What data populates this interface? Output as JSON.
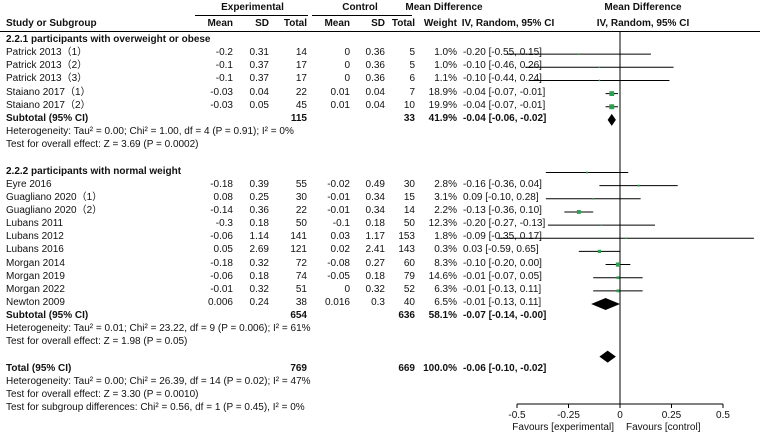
{
  "header": {
    "group_experimental": "Experimental",
    "group_control": "Control",
    "group_md": "Mean Difference",
    "group_md_plot": "Mean Difference",
    "study": "Study or Subgroup",
    "mean_e": "Mean",
    "sd_e": "SD",
    "total_e": "Total",
    "mean_c": "Mean",
    "sd_c": "SD",
    "total_c": "Total",
    "weight": "Weight",
    "md_col": "IV, Random, 95% CI",
    "md_plot_col": "IV, Random, 95% CI"
  },
  "rows": [
    {
      "kind": "subgroup",
      "label": "2.2.1 participants with overweight or obese"
    },
    {
      "kind": "study",
      "label": "Patrick 2013（1）",
      "mean_e": "-0.2",
      "sd_e": "0.31",
      "total_e": "14",
      "mean_c": "0",
      "sd_c": "0.36",
      "total_c": "5",
      "weight": "1.0%",
      "ci_text": "-0.20 [-0.55, 0.15]"
    },
    {
      "kind": "study",
      "label": "Patrick 2013（2）",
      "mean_e": "-0.1",
      "sd_e": "0.37",
      "total_e": "17",
      "mean_c": "0",
      "sd_c": "0.36",
      "total_c": "5",
      "weight": "1.0%",
      "ci_text": "-0.10 [-0.46, 0.26]"
    },
    {
      "kind": "study",
      "label": "Patrick 2013（3）",
      "mean_e": "-0.1",
      "sd_e": "0.37",
      "total_e": "17",
      "mean_c": "0",
      "sd_c": "0.36",
      "total_c": "6",
      "weight": "1.1%",
      "ci_text": "-0.10 [-0.44, 0.24]"
    },
    {
      "kind": "study",
      "label": "Staiano 2017（1）",
      "mean_e": "-0.03",
      "sd_e": "0.04",
      "total_e": "22",
      "mean_c": "0.01",
      "sd_c": "0.04",
      "total_c": "7",
      "weight": "18.9%",
      "ci_text": "-0.04 [-0.07, -0.01]"
    },
    {
      "kind": "study",
      "label": "Staiano 2017（2）",
      "mean_e": "-0.03",
      "sd_e": "0.05",
      "total_e": "45",
      "mean_c": "0.01",
      "sd_c": "0.04",
      "total_c": "10",
      "weight": "19.9%",
      "ci_text": "-0.04 [-0.07, -0.01]"
    },
    {
      "kind": "subtotal",
      "label": "Subtotal (95% CI)",
      "total_e": "115",
      "total_c": "33",
      "weight": "41.9%",
      "ci_text": "-0.04 [-0.06, -0.02]"
    },
    {
      "kind": "note",
      "label": "Heterogeneity: Tau² = 0.00; Chi² = 1.00, df = 4 (P = 0.91); I² = 0%"
    },
    {
      "kind": "note",
      "label": "Test for overall effect: Z = 3.69 (P = 0.0002)"
    },
    {
      "kind": "blank",
      "label": ""
    },
    {
      "kind": "subgroup",
      "label": "2.2.2 participants with normal weight"
    },
    {
      "kind": "study",
      "label": "Eyre 2016",
      "mean_e": "-0.18",
      "sd_e": "0.39",
      "total_e": "55",
      "mean_c": "-0.02",
      "sd_c": "0.49",
      "total_c": "30",
      "weight": "2.8%",
      "ci_text": "-0.16 [-0.36, 0.04]"
    },
    {
      "kind": "study",
      "label": "Guagliano 2020（1）",
      "mean_e": "0.08",
      "sd_e": "0.25",
      "total_e": "30",
      "mean_c": "-0.01",
      "sd_c": "0.34",
      "total_c": "15",
      "weight": "3.1%",
      "ci_text": "0.09 [-0.10, 0.28]"
    },
    {
      "kind": "study",
      "label": "Guagliano 2020（2）",
      "mean_e": "-0.14",
      "sd_e": "0.36",
      "total_e": "22",
      "mean_c": "-0.01",
      "sd_c": "0.34",
      "total_c": "14",
      "weight": "2.2%",
      "ci_text": "-0.13 [-0.36, 0.10]"
    },
    {
      "kind": "study",
      "label": "Lubans 2011",
      "mean_e": "-0.3",
      "sd_e": "0.18",
      "total_e": "50",
      "mean_c": "-0.1",
      "sd_c": "0.18",
      "total_c": "50",
      "weight": "12.3%",
      "ci_text": "-0.20 [-0.27, -0.13]"
    },
    {
      "kind": "study",
      "label": "Lubans 2012",
      "mean_e": "-0.06",
      "sd_e": "1.14",
      "total_e": "141",
      "mean_c": "0.03",
      "sd_c": "1.17",
      "total_c": "153",
      "weight": "1.8%",
      "ci_text": "-0.09 [-0.35, 0.17]"
    },
    {
      "kind": "study",
      "label": "Lubans 2016",
      "mean_e": "0.05",
      "sd_e": "2.69",
      "total_e": "121",
      "mean_c": "0.02",
      "sd_c": "2.41",
      "total_c": "143",
      "weight": "0.3%",
      "ci_text": "0.03 [-0.59, 0.65]"
    },
    {
      "kind": "study",
      "label": "Morgan 2014",
      "mean_e": "-0.18",
      "sd_e": "0.32",
      "total_e": "72",
      "mean_c": "-0.08",
      "sd_c": "0.27",
      "total_c": "60",
      "weight": "8.3%",
      "ci_text": "-0.10 [-0.20, 0.00]"
    },
    {
      "kind": "study",
      "label": "Morgan 2019",
      "mean_e": "-0.06",
      "sd_e": "0.18",
      "total_e": "74",
      "mean_c": "-0.05",
      "sd_c": "0.18",
      "total_c": "79",
      "weight": "14.6%",
      "ci_text": "-0.01 [-0.07, 0.05]"
    },
    {
      "kind": "study",
      "label": "Morgan 2022",
      "mean_e": "-0.01",
      "sd_e": "0.32",
      "total_e": "51",
      "mean_c": "0",
      "sd_c": "0.32",
      "total_c": "52",
      "weight": "6.3%",
      "ci_text": "-0.01 [-0.13, 0.11]"
    },
    {
      "kind": "study",
      "label": "Newton 2009",
      "mean_e": "0.006",
      "sd_e": "0.24",
      "total_e": "38",
      "mean_c": "0.016",
      "sd_c": "0.3",
      "total_c": "40",
      "weight": "6.5%",
      "ci_text": "-0.01 [-0.13, 0.11]"
    },
    {
      "kind": "subtotal",
      "label": "Subtotal (95% CI)",
      "total_e": "654",
      "total_c": "636",
      "weight": "58.1%",
      "ci_text": "-0.07 [-0.14, -0.00]"
    },
    {
      "kind": "note",
      "label": "Heterogeneity: Tau² = 0.01; Chi² = 23.22, df = 9 (P = 0.006); I² = 61%"
    },
    {
      "kind": "note",
      "label": "Test for overall effect: Z = 1.98 (P = 0.05)"
    },
    {
      "kind": "blank",
      "label": ""
    },
    {
      "kind": "total",
      "label": "Total (95% CI)",
      "total_e": "769",
      "total_c": "669",
      "weight": "100.0%",
      "ci_text": "-0.06 [-0.10, -0.02]"
    },
    {
      "kind": "note",
      "label": "Heterogeneity: Tau² = 0.00; Chi² = 26.39, df = 14 (P = 0.02); I² = 47%"
    },
    {
      "kind": "note",
      "label": "Test for overall effect: Z = 3.30 (P = 0.0010)"
    },
    {
      "kind": "note",
      "label": "Test for subgroup differences: Chi² = 0.56, df = 1 (P = 0.45), I² = 0%"
    }
  ],
  "chart_data": {
    "type": "forest",
    "xlim": [
      -0.5,
      0.5
    ],
    "xticks": [
      "-0.5",
      "-0.25",
      "0",
      "0.25",
      "0.5"
    ],
    "xtick_values": [
      -0.5,
      -0.25,
      0,
      0.25,
      0.5
    ],
    "xlabel_left": "Favours [experimental]",
    "xlabel_right": "Favours [control]",
    "marker_color": "#2e9e4f",
    "studies": [
      {
        "row": 1,
        "md": -0.2,
        "lo": -0.55,
        "hi": 0.15,
        "weight": 1.0
      },
      {
        "row": 2,
        "md": -0.1,
        "lo": -0.46,
        "hi": 0.26,
        "weight": 1.0
      },
      {
        "row": 3,
        "md": -0.1,
        "lo": -0.44,
        "hi": 0.24,
        "weight": 1.1
      },
      {
        "row": 4,
        "md": -0.04,
        "lo": -0.07,
        "hi": -0.01,
        "weight": 18.9
      },
      {
        "row": 5,
        "md": -0.04,
        "lo": -0.07,
        "hi": -0.01,
        "weight": 19.9
      },
      {
        "row": 10,
        "md": -0.16,
        "lo": -0.36,
        "hi": 0.04,
        "weight": 2.8
      },
      {
        "row": 11,
        "md": 0.09,
        "lo": -0.1,
        "hi": 0.28,
        "weight": 3.1
      },
      {
        "row": 12,
        "md": -0.13,
        "lo": -0.36,
        "hi": 0.1,
        "weight": 2.2
      },
      {
        "row": 13,
        "md": -0.2,
        "lo": -0.27,
        "hi": -0.13,
        "weight": 12.3
      },
      {
        "row": 14,
        "md": -0.09,
        "lo": -0.35,
        "hi": 0.17,
        "weight": 1.8
      },
      {
        "row": 15,
        "md": 0.03,
        "lo": -0.59,
        "hi": 0.65,
        "weight": 0.3
      },
      {
        "row": 16,
        "md": -0.1,
        "lo": -0.2,
        "hi": 0.0,
        "weight": 8.3
      },
      {
        "row": 17,
        "md": -0.01,
        "lo": -0.07,
        "hi": 0.05,
        "weight": 14.6
      },
      {
        "row": 18,
        "md": -0.01,
        "lo": -0.13,
        "hi": 0.11,
        "weight": 6.3
      },
      {
        "row": 19,
        "md": -0.01,
        "lo": -0.13,
        "hi": 0.11,
        "weight": 6.5
      }
    ],
    "diamonds": [
      {
        "row": 6,
        "md": -0.04,
        "lo": -0.06,
        "hi": -0.02
      },
      {
        "row": 20,
        "md": -0.07,
        "lo": -0.14,
        "hi": -0.0
      },
      {
        "row": 24,
        "md": -0.06,
        "lo": -0.1,
        "hi": -0.02
      }
    ]
  }
}
